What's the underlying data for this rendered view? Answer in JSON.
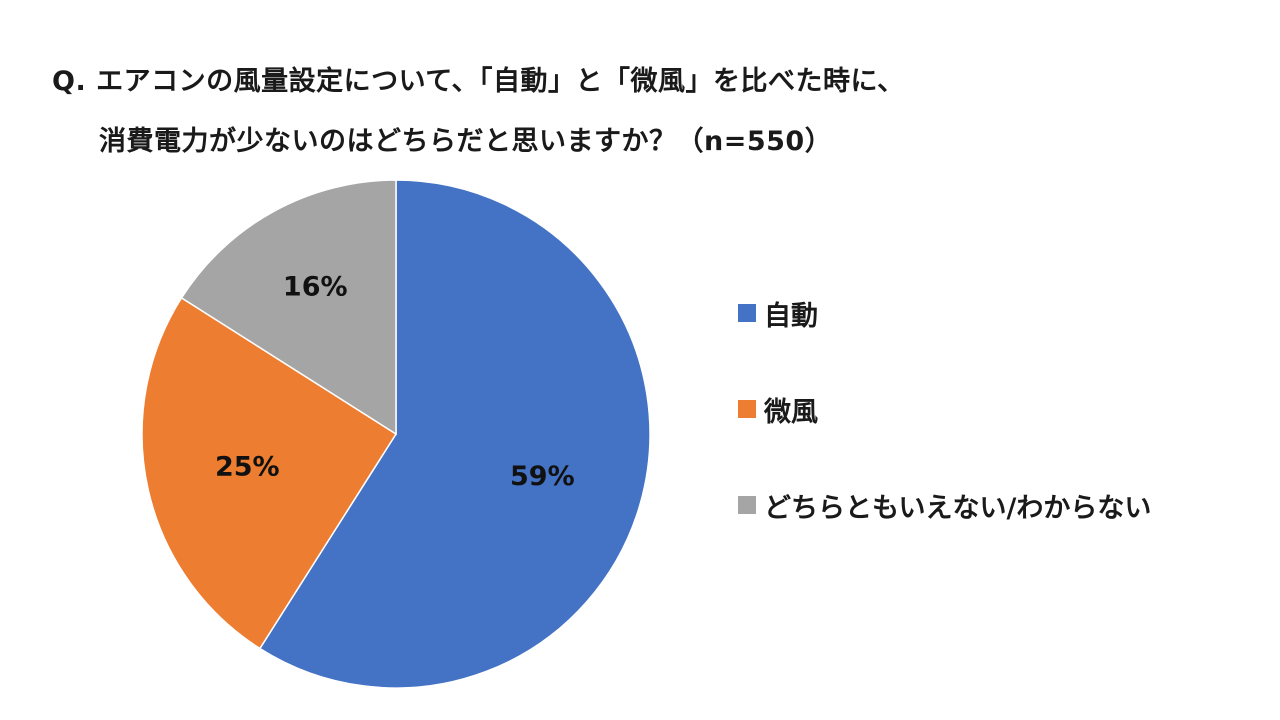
{
  "header": {
    "title_line1": "Q. エアコンの風量設定について、「自動」と「微風」を比べた時に、",
    "title_line2": "消費電力が少ないのはどちらだと思いますか？（n=550）"
  },
  "chart_data": {
    "type": "pie",
    "title": "Q. エアコンの風量設定について、「自動」と「微風」を比べた時に、消費電力が少ないのはどちらだと思いますか？（n=550）",
    "n": 550,
    "start_angle_deg": 0,
    "direction": "clockwise",
    "legend_position": "right",
    "slices": [
      {
        "label": "自動",
        "value": 59,
        "display": "59%",
        "color": "#4472C4"
      },
      {
        "label": "微風",
        "value": 25,
        "display": "25%",
        "color": "#ED7D31"
      },
      {
        "label": "どちらともいえない/わからない",
        "value": 16,
        "display": "16%",
        "color": "#A5A5A5"
      }
    ]
  }
}
